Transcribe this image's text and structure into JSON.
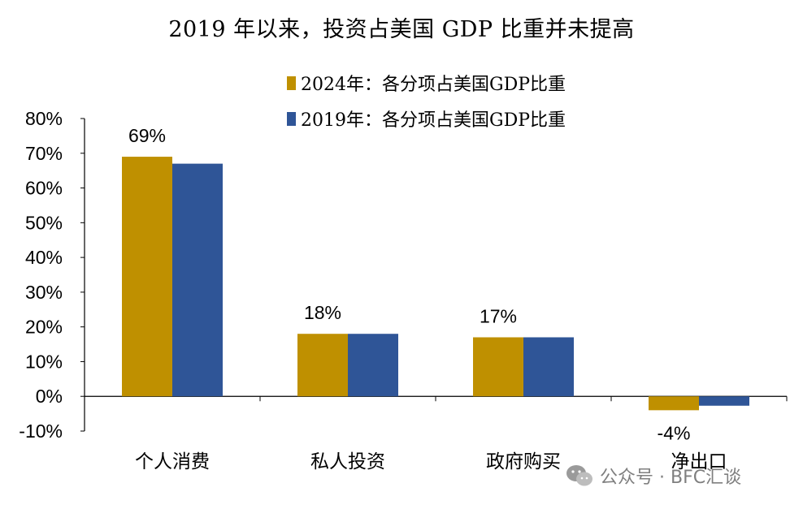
{
  "chart_data": {
    "type": "bar",
    "title": "2019 年以来，投资占美国 GDP 比重并未提高",
    "categories": [
      "个人消费",
      "私人投资",
      "政府购买",
      "净出口"
    ],
    "series": [
      {
        "name": "2024年：各分项占美国GDP比重",
        "color": "#BF9000",
        "values": [
          69,
          18,
          17,
          -4
        ]
      },
      {
        "name": "2019年：各分项占美国GDP比重",
        "color": "#2F5597",
        "values": [
          67,
          18,
          17,
          -2.7
        ]
      }
    ],
    "data_labels": [
      "69%",
      "18%",
      "17%",
      "-4%"
    ],
    "ylim": [
      -10,
      80
    ],
    "yticks": [
      "-10%",
      "0%",
      "10%",
      "20%",
      "30%",
      "40%",
      "50%",
      "60%",
      "70%",
      "80%"
    ],
    "xlabel": "",
    "ylabel": "",
    "legend_position": "top-center",
    "grid": false
  },
  "watermark": {
    "text": "公众号 · BFC汇谈",
    "icon": "wechat-icon"
  }
}
